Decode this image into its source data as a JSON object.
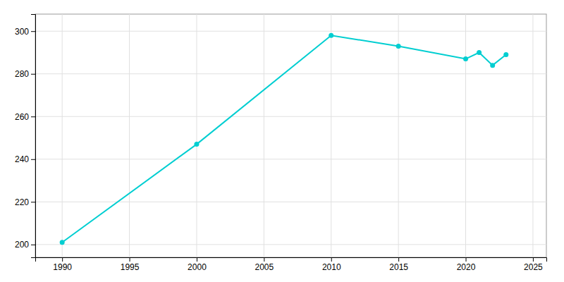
{
  "chart_data": {
    "type": "line",
    "x": [
      1990,
      2000,
      2010,
      2015,
      2020,
      2021,
      2022,
      2023
    ],
    "values": [
      201,
      247,
      298,
      293,
      287,
      290,
      284,
      289
    ],
    "color": "#00CED1",
    "marker": "circle",
    "xlim": [
      1988,
      2026
    ],
    "ylim": [
      194,
      308
    ],
    "xticks": [
      1990,
      1995,
      2000,
      2005,
      2010,
      2015,
      2020,
      2025
    ],
    "yticks": [
      200,
      220,
      240,
      260,
      280,
      300
    ],
    "grid": true
  }
}
